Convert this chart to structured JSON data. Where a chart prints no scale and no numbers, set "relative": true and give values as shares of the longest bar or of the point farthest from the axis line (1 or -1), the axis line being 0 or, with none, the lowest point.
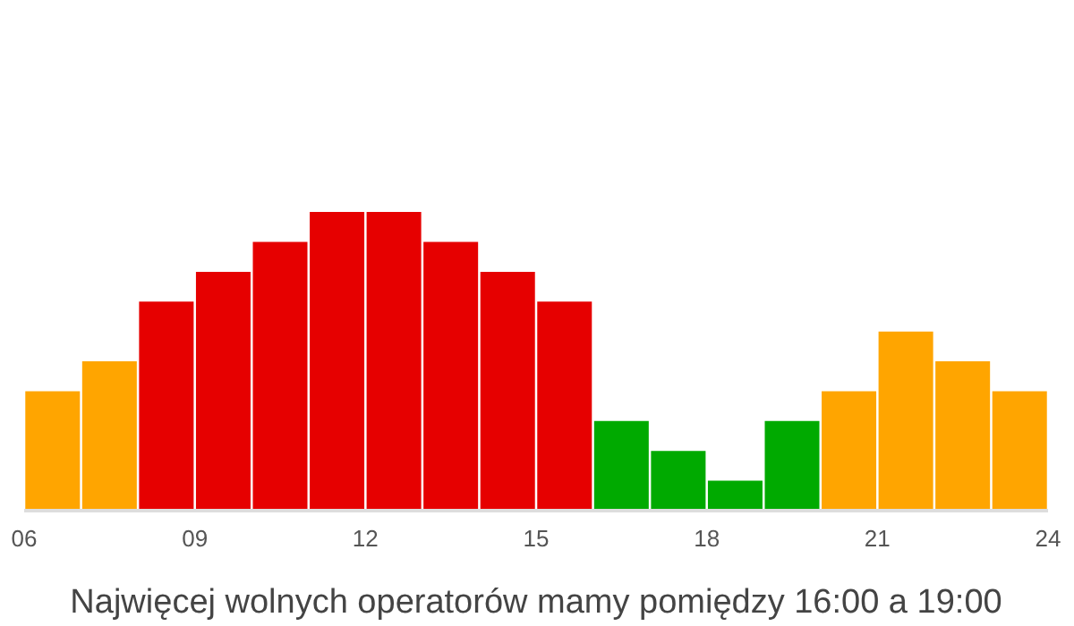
{
  "chart_data": {
    "type": "bar",
    "relative": true,
    "x": [
      6.5,
      7.5,
      8.5,
      9.5,
      10.5,
      11.5,
      12.5,
      13.5,
      14.5,
      15.5,
      16.5,
      17.5,
      18.5,
      19.5,
      20.5,
      21.5,
      22.5,
      23.5
    ],
    "values": [
      0.4,
      0.5,
      0.7,
      0.8,
      0.9,
      1,
      1,
      0.9,
      0.8,
      0.7,
      0.3,
      0.2,
      0.1,
      0.3,
      0.4,
      0.6,
      0.5,
      0.4
    ],
    "colors": [
      "#ffa500",
      "#ffa500",
      "#e60000",
      "#e60000",
      "#e60000",
      "#e60000",
      "#e60000",
      "#e60000",
      "#e60000",
      "#e60000",
      "#00aa00",
      "#00aa00",
      "#00aa00",
      "#00aa00",
      "#ffa500",
      "#ffa500",
      "#ffa500",
      "#ffa500"
    ],
    "xlim": [
      6,
      24
    ],
    "xticks": [
      {
        "value": 6,
        "label": "06"
      },
      {
        "value": 9,
        "label": "09"
      },
      {
        "value": 12,
        "label": "12"
      },
      {
        "value": 15,
        "label": "15"
      },
      {
        "value": 18,
        "label": "18"
      },
      {
        "value": 21,
        "label": "21"
      },
      {
        "value": 24,
        "label": "24"
      }
    ],
    "xlabel": "Najwięcej wolnych operatorów mamy pomiędzy 16:00 a 19:00",
    "grid": false
  }
}
